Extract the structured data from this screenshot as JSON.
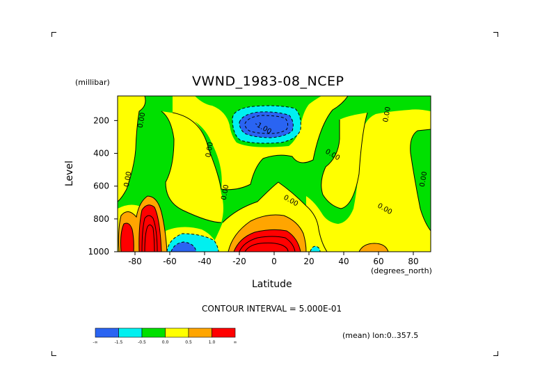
{
  "chart_data": {
    "type": "heatmap",
    "title": "VWND_1983-08_NCEP",
    "y_unit_label": "(millibar)",
    "x_unit_label": "(degrees_north)",
    "xlabel": "Latitude",
    "ylabel": "Level",
    "xlim": [
      -90,
      90
    ],
    "ylim": [
      1000,
      50
    ],
    "y_reversed": true,
    "x_ticks": [
      "-80",
      "-60",
      "-40",
      "-20",
      "0",
      "20",
      "40",
      "60",
      "80"
    ],
    "x_tick_values": [
      -80,
      -60,
      -40,
      -20,
      0,
      20,
      40,
      60,
      80
    ],
    "y_ticks": [
      "200",
      "400",
      "600",
      "800",
      "1000"
    ],
    "y_tick_values": [
      200,
      400,
      600,
      800,
      1000
    ],
    "contour_interval_text": "CONTOUR INTERVAL = 5.000E-01",
    "mean_note": "(mean) lon:0..357.5",
    "contour_labels": [
      {
        "text": "0.00",
        "lat": -75,
        "lev": 200
      },
      {
        "text": "0.00",
        "lat": -36,
        "lev": 380
      },
      {
        "text": "0.00",
        "lat": -83,
        "lev": 560
      },
      {
        "text": "0.00",
        "lat": -27,
        "lev": 640
      },
      {
        "text": "0.00",
        "lat": 9,
        "lev": 700
      },
      {
        "text": "0.00",
        "lat": 33,
        "lev": 420
      },
      {
        "text": "0.00",
        "lat": 66,
        "lev": 165
      },
      {
        "text": "0.00",
        "lat": 87,
        "lev": 560
      },
      {
        "text": "0.00",
        "lat": 63,
        "lev": 750
      },
      {
        "text": "-1.00",
        "lat": -7,
        "lev": 255
      }
    ],
    "regions": [
      {
        "level": "neg_lt_-1.5",
        "color": "#2a64f2",
        "lat": -10,
        "lev": 210
      },
      {
        "level": "neg_lt_-1.5",
        "color": "#2a64f2",
        "lat": -55,
        "lev": 960
      },
      {
        "level": "-1.5_to_-0.5",
        "color": "#00f0f0",
        "lat": -10,
        "lev": 210
      },
      {
        "level": "-0.5_to_0",
        "color": "#00e000",
        "lat": -40,
        "lev": 400
      },
      {
        "level": "0_to_0.5",
        "color": "#ffff00",
        "lat": 10,
        "lev": 500
      },
      {
        "level": "0.5_to_1.0",
        "color": "#ffa500",
        "lat": -10,
        "lev": 920
      },
      {
        "level": "gt_1.0",
        "color": "#ff0000",
        "lat": -77,
        "lev": 850
      }
    ]
  },
  "colorbar": {
    "colors": [
      "#2a64f2",
      "#00f0f0",
      "#00e000",
      "#ffff00",
      "#ffa500",
      "#ff0000"
    ],
    "labels": [
      "-∞",
      "-1.5",
      "-0.5",
      "0.0",
      "0.5",
      "1.0",
      "∞"
    ]
  }
}
